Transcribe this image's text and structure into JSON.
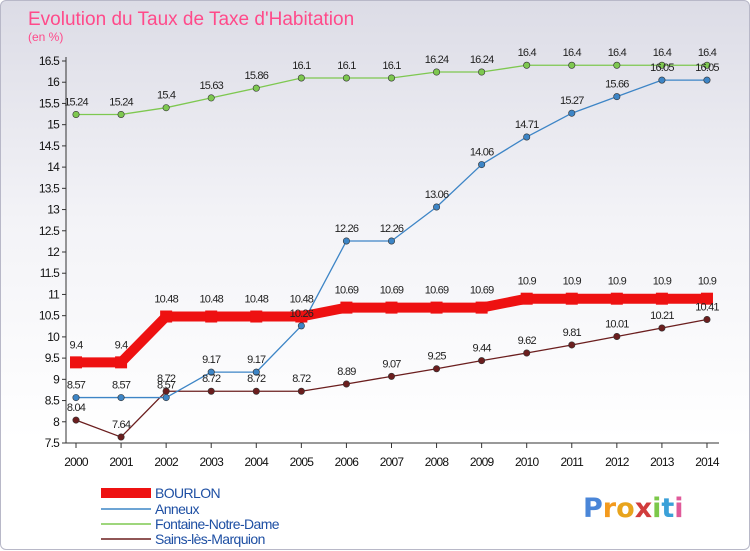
{
  "chart_data": {
    "type": "line",
    "title": "Evolution du Taux de Taxe d'Habitation",
    "subtitle": "(en %)",
    "x": [
      "2000",
      "2001",
      "2002",
      "2003",
      "2004",
      "2005",
      "2006",
      "2007",
      "2008",
      "2009",
      "2010",
      "2011",
      "2012",
      "2013",
      "2014"
    ],
    "ylim": [
      7.5,
      16.5
    ],
    "yticks": [
      "7.5",
      "8",
      "8.5",
      "9",
      "9.5",
      "10",
      "10.5",
      "11",
      "11.5",
      "12",
      "12.5",
      "13",
      "13.5",
      "14",
      "14.5",
      "15",
      "15.5",
      "16",
      "16.5"
    ],
    "grid": false,
    "legend_position": "bottom-left",
    "series": [
      {
        "name": "BOURLON",
        "color": "#ee1111",
        "values": [
          9.4,
          9.4,
          10.48,
          10.48,
          10.48,
          10.48,
          10.69,
          10.69,
          10.69,
          10.69,
          10.9,
          10.9,
          10.9,
          10.9,
          10.9
        ],
        "labels": [
          "9.4",
          "9.4",
          "10.48",
          "10.48",
          "10.48",
          "10.48",
          "10.69",
          "10.69",
          "10.69",
          "10.69",
          "10.9",
          "10.9",
          "10.9",
          "10.9",
          "10.9"
        ]
      },
      {
        "name": "Anneux",
        "color": "#3d85c6",
        "values": [
          8.57,
          8.57,
          8.57,
          9.17,
          9.17,
          10.26,
          12.26,
          12.26,
          13.06,
          14.06,
          14.71,
          15.27,
          15.66,
          16.05,
          16.05
        ],
        "labels": [
          "8.57",
          "8.57",
          "8.57",
          "9.17",
          "9.17",
          "10.26",
          "12.26",
          "12.26",
          "13.06",
          "14.06",
          "14.71",
          "15.27",
          "15.66",
          "16.05",
          "16.05"
        ]
      },
      {
        "name": "Fontaine-Notre-Dame",
        "color": "#7ec850",
        "values": [
          15.24,
          15.24,
          15.4,
          15.63,
          15.86,
          16.1,
          16.1,
          16.1,
          16.24,
          16.24,
          16.4,
          16.4,
          16.4,
          16.4,
          16.4
        ],
        "labels": [
          "15.24",
          "15.24",
          "15.4",
          "15.63",
          "15.86",
          "16.1",
          "16.1",
          "16.1",
          "16.24",
          "16.24",
          "16.4",
          "16.4",
          "16.4",
          "16.4",
          "16.4"
        ]
      },
      {
        "name": "Sains-lès-Marquion",
        "color": "#6b1e1e",
        "values": [
          8.04,
          7.64,
          8.72,
          8.72,
          8.72,
          8.72,
          8.89,
          9.07,
          9.25,
          9.44,
          9.62,
          9.81,
          10.01,
          10.21,
          10.41
        ],
        "labels": [
          "8.04",
          "7.64",
          "8.72",
          "8.72",
          "8.72",
          "8.72",
          "8.89",
          "9.07",
          "9.25",
          "9.44",
          "9.62",
          "9.81",
          "10.01",
          "10.21",
          "10.41"
        ]
      }
    ]
  },
  "logo": {
    "text": "Proxiti"
  },
  "colors": {
    "title": "#ff4a8a",
    "axis": "#333333",
    "legend_text": "#1e4fa3"
  }
}
